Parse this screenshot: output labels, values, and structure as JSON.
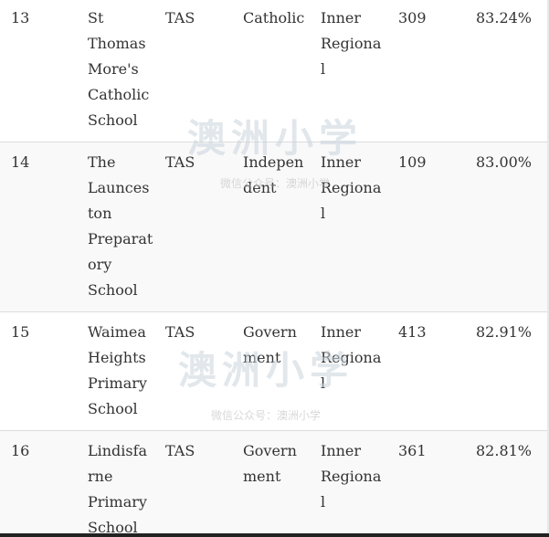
{
  "rows": [
    {
      "rank": "13",
      "name": "St\nThomas\nMore's\nCatholic\nSchool",
      "state": "TAS",
      "sector": "Catholic",
      "region": "Inner\nRegiona\nl",
      "count": "309",
      "percent": "83.24%"
    },
    {
      "rank": "14",
      "name": "The\nLaunces\nton\nPreparat\nory\nSchool",
      "state": "TAS",
      "sector": "Indepen\ndent",
      "region": "Inner\nRegiona\nl",
      "count": "109",
      "percent": "83.00%"
    },
    {
      "rank": "15",
      "name": "Waimea\nHeights\nPrimary\nSchool",
      "state": "TAS",
      "sector": "Govern\nment",
      "region": "Inner\nRegiona\nl",
      "count": "413",
      "percent": "82.91%"
    },
    {
      "rank": "16",
      "name": "Lindisfa\nrne\nPrimary\nSchool",
      "state": "TAS",
      "sector": "Govern\nment",
      "region": "Inner\nRegiona\nl",
      "count": "361",
      "percent": "82.81%"
    }
  ],
  "watermark": {
    "title": "澳洲小学",
    "subtitle": "微信公众号：澳洲小学"
  },
  "colors": {
    "row_alt": "#f9f9f9",
    "text": "#333333",
    "border": "#dcdcdc"
  }
}
